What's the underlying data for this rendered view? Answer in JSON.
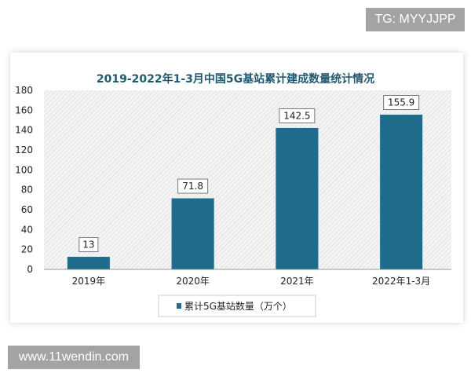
{
  "watermarks": {
    "top": "TG: MYYJJPP",
    "bottom": "www.11wendin.com"
  },
  "chart_data": {
    "type": "bar",
    "title": "2019-2022年1-3月中国5G基站累计建成数量统计情况",
    "categories": [
      "2019年",
      "2020年",
      "2021年",
      "2022年1-3月"
    ],
    "series": [
      {
        "name": "累计5G基站数量（万个）",
        "values": [
          13,
          71.8,
          142.5,
          155.9
        ],
        "color": "#1f6b8c"
      }
    ],
    "data_labels": [
      "13",
      "71.8",
      "142.5",
      "155.9"
    ],
    "ylim": [
      0,
      180
    ],
    "yticks": [
      0,
      20,
      40,
      60,
      80,
      100,
      120,
      140,
      160,
      180
    ],
    "xlabel": "",
    "ylabel": "",
    "grid": false,
    "background": "hatched",
    "legend": "bottom",
    "title_color": "#1e5a6e"
  }
}
